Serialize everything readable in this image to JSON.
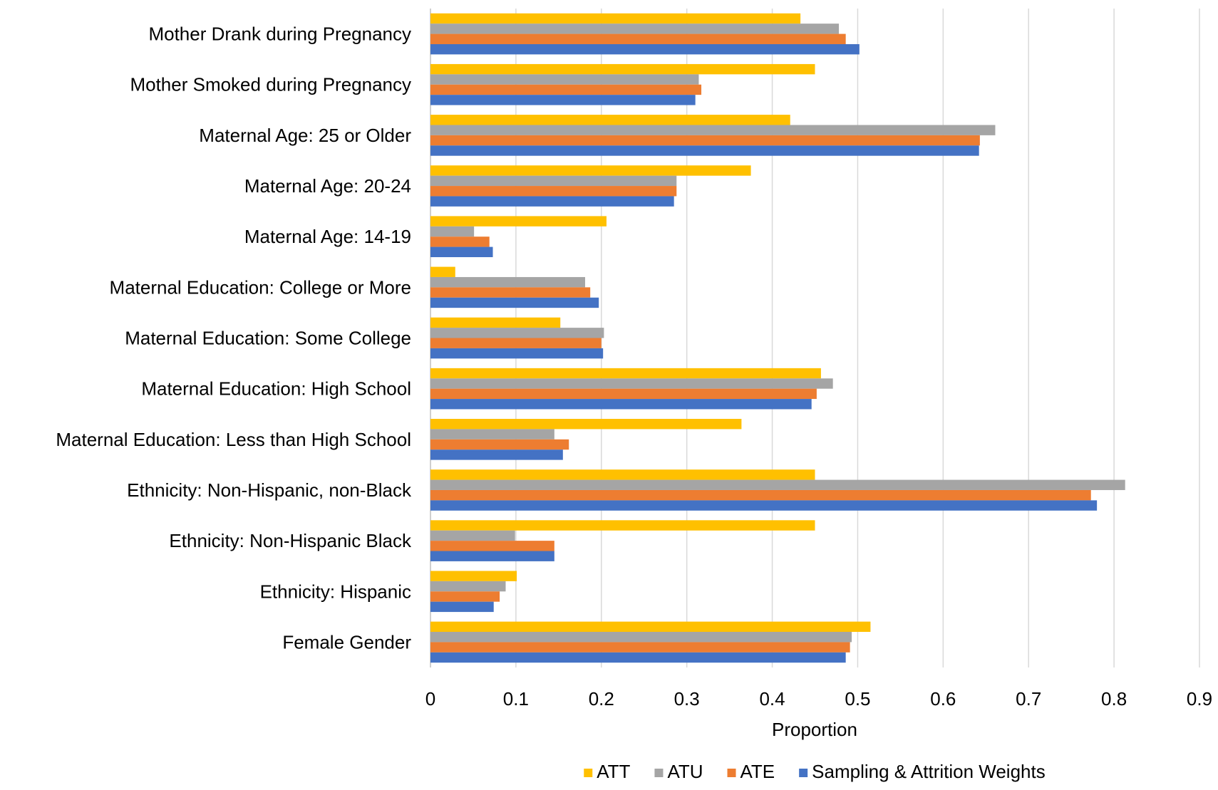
{
  "chart_data": {
    "type": "bar",
    "orientation": "horizontal",
    "title": "",
    "xlabel": "Proportion",
    "ylabel": "",
    "xlim": [
      0,
      0.9
    ],
    "x_ticks": [
      "0",
      "0.1",
      "0.2",
      "0.3",
      "0.4",
      "0.5",
      "0.6",
      "0.7",
      "0.8",
      "0.9"
    ],
    "grid": "vertical",
    "legend_position": "bottom",
    "categories": [
      "Mother Drank during Pregnancy",
      "Mother Smoked during Pregnancy",
      "Maternal Age: 25 or Older",
      "Maternal Age: 20-24",
      "Maternal Age: 14-19",
      "Maternal Education: College or More",
      "Maternal Education: Some College",
      "Maternal Education: High School",
      "Maternal Education: Less than High School",
      "Ethnicity: Non-Hispanic, non-Black",
      "Ethnicity: Non-Hispanic Black",
      "Ethnicity: Hispanic",
      "Female Gender"
    ],
    "series": [
      {
        "name": "ATT",
        "color": "#FFC000",
        "values": [
          0.433,
          0.45,
          0.421,
          0.375,
          0.206,
          0.029,
          0.152,
          0.457,
          0.364,
          0.45,
          0.45,
          0.101,
          0.515
        ]
      },
      {
        "name": "ATU",
        "color": "#A5A5A5",
        "values": [
          0.478,
          0.314,
          0.661,
          0.288,
          0.051,
          0.181,
          0.203,
          0.471,
          0.145,
          0.813,
          0.099,
          0.088,
          0.493
        ]
      },
      {
        "name": "ATE",
        "color": "#ED7D31",
        "values": [
          0.486,
          0.317,
          0.643,
          0.288,
          0.069,
          0.187,
          0.2,
          0.452,
          0.162,
          0.773,
          0.145,
          0.081,
          0.491
        ]
      },
      {
        "name": "Sampling & Attrition Weights",
        "color": "#4472C4",
        "values": [
          0.502,
          0.31,
          0.642,
          0.285,
          0.073,
          0.197,
          0.202,
          0.446,
          0.155,
          0.78,
          0.145,
          0.074,
          0.486
        ]
      }
    ]
  }
}
